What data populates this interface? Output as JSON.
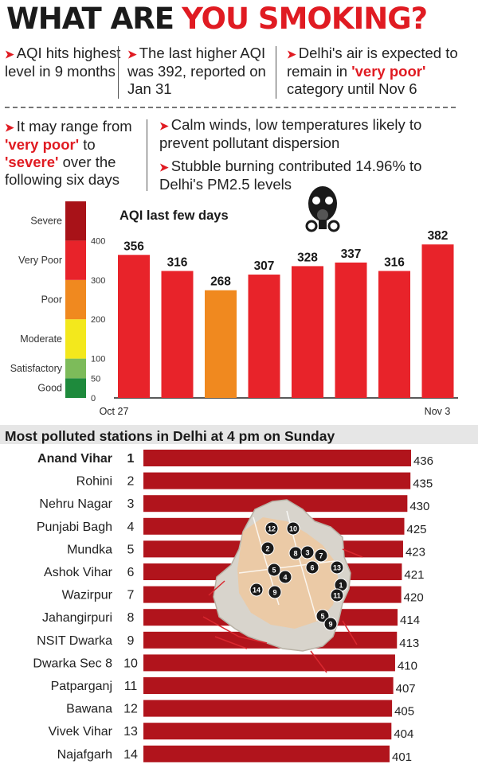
{
  "headline": {
    "part1": "WHAT ARE",
    "part2": "YOU SMOKING?"
  },
  "facts_row1": [
    {
      "text": "AQI hits highest level in 9 months"
    },
    {
      "text": "The last higher AQI was 392, reported on Jan 31"
    },
    {
      "pre": "Delhi's air is expected to remain in ",
      "hl": "'very poor'",
      "post": " category until Nov 6"
    }
  ],
  "fact_range": {
    "pre": "It may range from ",
    "hl1": "'very poor'",
    "mid": " to ",
    "hl2": "'severe'",
    "post": " over the following six days"
  },
  "fact_winds": {
    "text": "Calm winds, low temperatures likely to prevent pollutant dispersion"
  },
  "fact_stubble": {
    "text": "Stubble burning contributed 14.96% to Delhi's PM2.5 levels"
  },
  "icons": {
    "arrow": "red-arrow-bullet-icon",
    "mask": "gas-mask-icon"
  },
  "colors": {
    "red": "#e01b22",
    "orange": "#f0891f",
    "dark_red": "#b01014",
    "station_bar": "#b1141c"
  },
  "chart_data": [
    {
      "type": "bar",
      "title": "AQI last few days",
      "x_start_label": "Oct 27",
      "x_end_label": "Nov 3",
      "categories": [
        "",
        "",
        "",
        "",
        "",
        "",
        "",
        ""
      ],
      "values": [
        356,
        316,
        268,
        307,
        328,
        337,
        316,
        382
      ],
      "bar_colors": [
        "#e8232a",
        "#e8232a",
        "#f0891f",
        "#e8232a",
        "#e8232a",
        "#e8232a",
        "#e8232a",
        "#e8232a"
      ],
      "ylim": [
        0,
        500
      ],
      "grid": false,
      "legend": {
        "scale_ticks": [
          "0",
          "50",
          "100",
          "200",
          "300",
          "400"
        ],
        "categories": [
          {
            "label": "Good",
            "range": [
              0,
              50
            ],
            "color": "#1e8a3c"
          },
          {
            "label": "Satisfactory",
            "range": [
              50,
              100
            ],
            "color": "#7dbb5a"
          },
          {
            "label": "Moderate",
            "range": [
              100,
              200
            ],
            "color": "#f3e81c"
          },
          {
            "label": "Poor",
            "range": [
              200,
              300
            ],
            "color": "#f0891f"
          },
          {
            "label": "Very Poor",
            "range": [
              300,
              400
            ],
            "color": "#e8232a"
          },
          {
            "label": "Severe",
            "range": [
              400,
              500
            ],
            "color": "#a81218"
          }
        ]
      }
    },
    {
      "type": "bar",
      "orientation": "horizontal",
      "title": "Most polluted stations in Delhi at 4 pm on Sunday",
      "categories": [
        "Anand Vihar",
        "Rohini",
        "Nehru Nagar",
        "Punjabi Bagh",
        "Mundka",
        "Ashok Vihar",
        "Wazirpur",
        "Jahangirpuri",
        "NSIT Dwarka",
        "Dwarka Sec 8",
        "Patparganj",
        "Bawana",
        "Vivek Vihar",
        "Najafgarh"
      ],
      "ranks": [
        "1",
        "2",
        "3",
        "4",
        "5",
        "6",
        "7",
        "8",
        "9",
        "10",
        "11",
        "12",
        "13",
        "14"
      ],
      "values": [
        436,
        435,
        430,
        425,
        423,
        421,
        420,
        414,
        413,
        410,
        407,
        405,
        404,
        401
      ],
      "map_markers": [
        "12",
        "10",
        "2",
        "8",
        "3",
        "7",
        "6",
        "13",
        "5",
        "4",
        "1",
        "14",
        "9",
        "11",
        "5",
        "9"
      ]
    }
  ]
}
